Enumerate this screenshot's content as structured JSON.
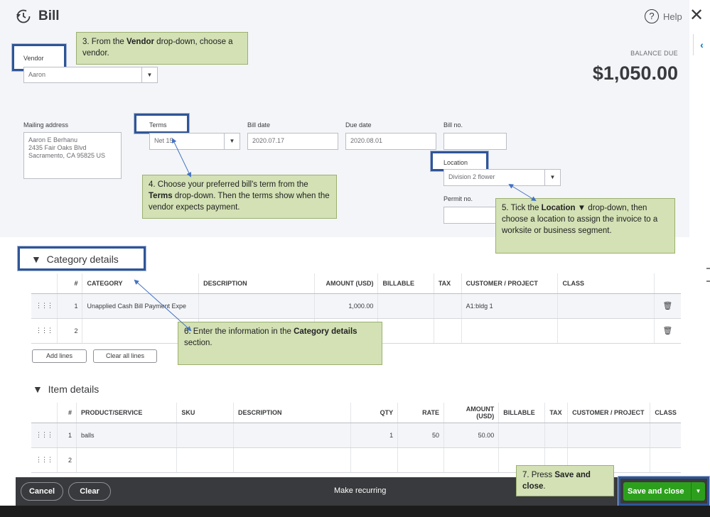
{
  "header": {
    "title": "Bill",
    "help_label": "Help"
  },
  "balance": {
    "label": "BALANCE DUE",
    "amount": "$1,050.00"
  },
  "form": {
    "vendor_label": "Vendor",
    "vendor_value": "Aaron",
    "mailing_label": "Mailing address",
    "mailing_lines": [
      "Aaron E Berhanu",
      "2435 Fair Oaks Blvd",
      "Sacramento, CA  95825 US"
    ],
    "terms_label": "Terms",
    "terms_value": "Net 15",
    "bill_date_label": "Bill date",
    "bill_date_value": "2020.07.17",
    "due_date_label": "Due date",
    "due_date_value": "2020.08.01",
    "bill_no_label": "Bill no.",
    "bill_no_value": "",
    "location_label": "Location",
    "location_value": "Division 2 flower",
    "permit_label": "Permit no.",
    "permit_value": ""
  },
  "callouts": {
    "vendor": {
      "pre": "3. From the ",
      "bold": "Vendor",
      "post": " drop-down, choose a vendor."
    },
    "terms": {
      "pre": "4. Choose your preferred bill's term from the ",
      "bold": "Terms",
      "post": " drop-down. Then the terms show when the vendor expects payment."
    },
    "location": {
      "pre": "5. Tick the ",
      "bold": "Location ▼",
      "post": " drop-down, then choose a location to assign the invoice to a worksite or business segment."
    },
    "category": {
      "pre": "6. Enter the information in the ",
      "bold": "Category details",
      "post": " section."
    },
    "save": {
      "pre": "7. Press ",
      "bold": "Save and close",
      "post": "."
    }
  },
  "category": {
    "title": "Category details",
    "columns": [
      "#",
      "CATEGORY",
      "DESCRIPTION",
      "AMOUNT (USD)",
      "BILLABLE",
      "TAX",
      "CUSTOMER / PROJECT",
      "CLASS"
    ],
    "rows": [
      {
        "num": "1",
        "category": "Unapplied Cash Bill Payment Expe",
        "description": "",
        "amount": "1,000.00",
        "customer": "A1:bldg 1"
      },
      {
        "num": "2",
        "category": "",
        "description": "",
        "amount": "",
        "customer": ""
      }
    ],
    "add_lines": "Add lines",
    "clear_lines": "Clear all lines"
  },
  "items": {
    "title": "Item details",
    "columns": [
      "#",
      "PRODUCT/SERVICE",
      "SKU",
      "DESCRIPTION",
      "QTY",
      "RATE",
      "AMOUNT (USD)",
      "BILLABLE",
      "TAX",
      "CUSTOMER / PROJECT",
      "CLASS"
    ],
    "rows": [
      {
        "num": "1",
        "product": "balls",
        "qty": "1",
        "rate": "50",
        "amount": "50.00"
      },
      {
        "num": "2",
        "product": "",
        "qty": "",
        "rate": "",
        "amount": ""
      }
    ]
  },
  "footer": {
    "cancel": "Cancel",
    "clear": "Clear",
    "make_recurring": "Make recurring",
    "save_close": "Save and close"
  },
  "icons": {
    "history": "history-icon",
    "help": "help-icon",
    "close": "close-icon",
    "trash": "trash-icon",
    "drag": "drag-handle-icon"
  },
  "colors": {
    "primary_green": "#2ca01c",
    "callout_fill": "#d3e1b5",
    "highlight_frame": "#2f5597"
  }
}
